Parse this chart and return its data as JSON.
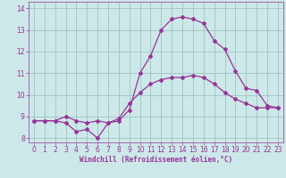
{
  "xlabel": "Windchill (Refroidissement éolien,°C)",
  "bg_color": "#cce8e8",
  "line_color": "#993399",
  "grid_color": "#99bbbb",
  "xlim": [
    -0.5,
    23.5
  ],
  "ylim": [
    7.8,
    14.3
  ],
  "yticks": [
    8,
    9,
    10,
    11,
    12,
    13,
    14
  ],
  "xticks": [
    0,
    1,
    2,
    3,
    4,
    5,
    6,
    7,
    8,
    9,
    10,
    11,
    12,
    13,
    14,
    15,
    16,
    17,
    18,
    19,
    20,
    21,
    22,
    23
  ],
  "line1_x": [
    0,
    1,
    2,
    3,
    4,
    5,
    6,
    7,
    8,
    9,
    10,
    11,
    12,
    13,
    14,
    15,
    16,
    17,
    18,
    19,
    20,
    21,
    22,
    23
  ],
  "line1_y": [
    8.8,
    8.8,
    8.8,
    8.7,
    8.3,
    8.4,
    8.0,
    8.7,
    8.9,
    9.6,
    10.1,
    10.5,
    10.7,
    10.8,
    10.8,
    10.9,
    10.8,
    10.5,
    10.1,
    9.8,
    9.6,
    9.4,
    9.4,
    9.4
  ],
  "line2_x": [
    0,
    1,
    2,
    3,
    4,
    5,
    6,
    7,
    8,
    9,
    10,
    11,
    12,
    13,
    14,
    15,
    16,
    17,
    18,
    19,
    20,
    21,
    22,
    23
  ],
  "line2_y": [
    8.8,
    8.8,
    8.8,
    9.0,
    8.8,
    8.7,
    8.8,
    8.7,
    8.8,
    9.3,
    11.0,
    11.8,
    13.0,
    13.5,
    13.6,
    13.5,
    13.3,
    12.5,
    12.1,
    11.1,
    10.3,
    10.2,
    9.5,
    9.4
  ],
  "tick_fontsize": 5.5,
  "xlabel_fontsize": 5.5,
  "marker_size": 2.0,
  "line_width": 0.9
}
